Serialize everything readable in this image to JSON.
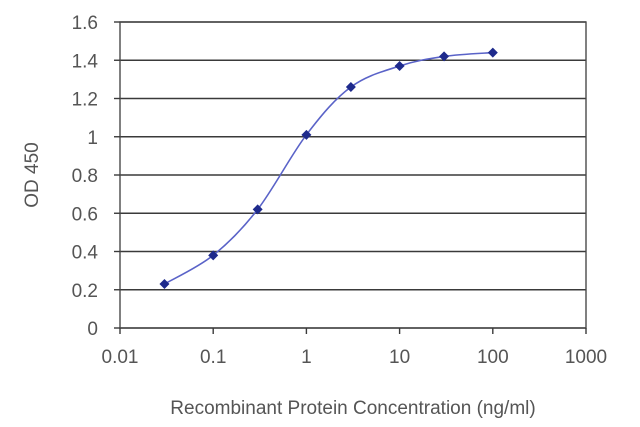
{
  "chart_data": {
    "type": "line",
    "xlabel": "Recombinant Protein Concentration (ng/ml)",
    "ylabel": "OD 450",
    "x_scale": "log",
    "xlim": [
      0.01,
      1000
    ],
    "ylim": [
      0,
      1.6
    ],
    "x_tick_labels": [
      "0.01",
      "0.1",
      "1",
      "10",
      "100",
      "1000"
    ],
    "y_tick_labels": [
      "0",
      "0.2",
      "0.4",
      "0.6",
      "0.8",
      "1",
      "1.2",
      "1.4",
      "1.6"
    ],
    "grid": "horizontal",
    "legend": "none",
    "series": [
      {
        "color": "#1e2a8c",
        "x": [
          0.03,
          0.1,
          0.3,
          1,
          3,
          10,
          30,
          100
        ],
        "y": [
          0.23,
          0.38,
          0.62,
          1.01,
          1.26,
          1.37,
          1.42,
          1.44
        ]
      }
    ]
  }
}
